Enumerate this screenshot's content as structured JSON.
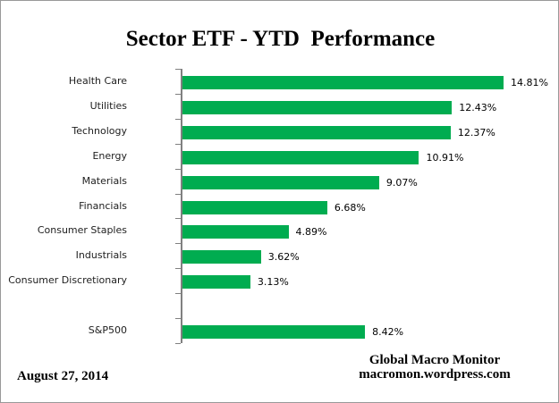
{
  "title": "Sector ETF - YTD  Performance",
  "footer": {
    "date": "August 27, 2014",
    "source_name": "Global Macro Monitor",
    "source_url": "macromon.wordpress.com"
  },
  "colors": {
    "bar_green": "#00AC50",
    "axis_gray": "#808080",
    "frame_border": "#999999",
    "label_text": "#212121"
  },
  "chart_data": {
    "type": "bar",
    "orientation": "horizontal",
    "title": "Sector ETF - YTD  Performance",
    "categories": [
      "Health Care",
      "Utilities",
      "Technology",
      "Energy",
      "Materials",
      "Financials",
      "Consumer Staples",
      "Industrials",
      "Consumer Discretionary",
      "",
      "S&P500"
    ],
    "values": [
      14.81,
      12.43,
      12.37,
      10.91,
      9.07,
      6.68,
      4.89,
      3.62,
      3.13,
      null,
      8.42
    ],
    "value_labels": [
      "14.81%",
      "12.43%",
      "12.37%",
      "10.91%",
      "9.07%",
      "6.68%",
      "4.89%",
      "3.62%",
      "3.13%",
      "",
      "8.42%"
    ],
    "xlabel": "",
    "ylabel": "",
    "xlim": [
      0,
      16.5
    ],
    "grid": false,
    "legend": false,
    "data_labels": true,
    "note": "blank category row separates sector ETFs from S&P500 benchmark"
  }
}
